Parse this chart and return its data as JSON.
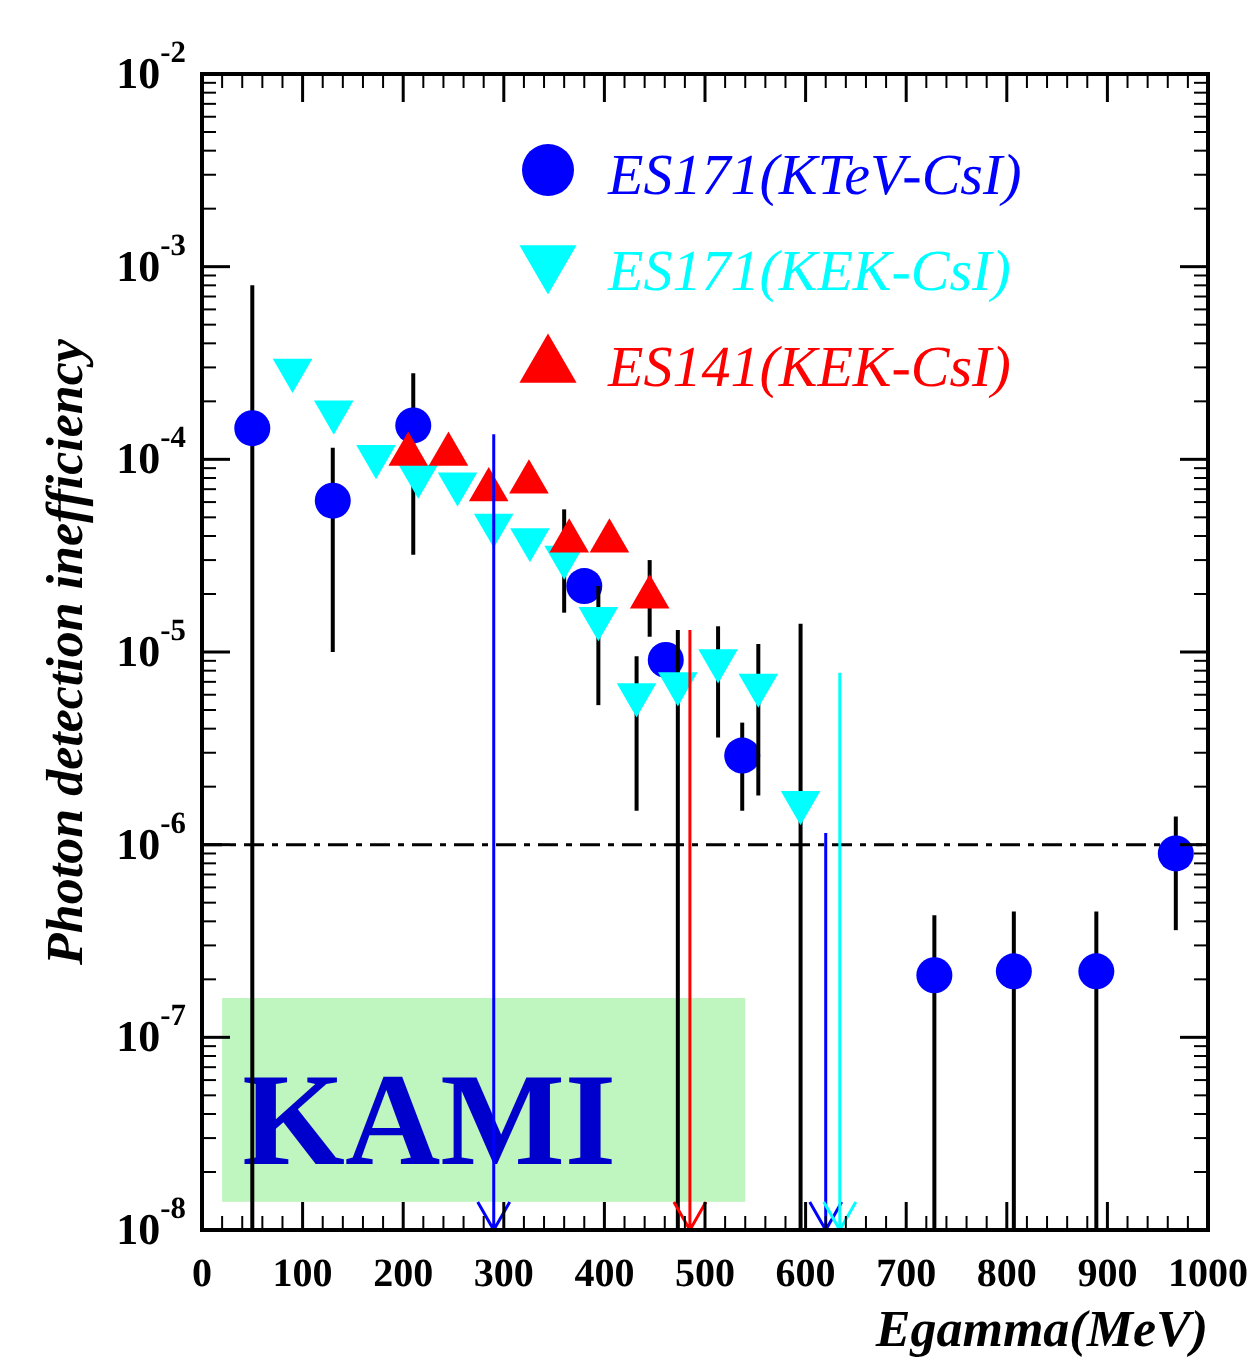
{
  "chart_data": {
    "type": "scatter",
    "xlabel": "Egamma(MeV)",
    "ylabel": "Photon detection inefficiency",
    "xlim": [
      0,
      1000
    ],
    "xticks": [
      0,
      100,
      200,
      300,
      400,
      500,
      600,
      700,
      800,
      900,
      1000
    ],
    "ylim": [
      1e-08,
      0.01
    ],
    "yticks": [
      {
        "value": 1e-08,
        "label": "10$^{-8}$"
      },
      {
        "value": 1e-07,
        "label": "10$^{-7}$"
      },
      {
        "value": 1e-06,
        "label": "10$^{-6}$"
      },
      {
        "value": 1e-05,
        "label": "10$^{-5}$"
      },
      {
        "value": 0.0001,
        "label": "10$^{-4}$"
      },
      {
        "value": 0.001,
        "label": "10$^{-3}$"
      },
      {
        "value": 0.01,
        "label": "10$^{-2}$"
      }
    ],
    "log": "y",
    "grid": false,
    "legend": "top right",
    "ref_lines": [
      {
        "axis": "y",
        "value": 1e-06,
        "color": "#000000",
        "line_style": "dashed"
      }
    ],
    "annotations": [
      "KAMI"
    ],
    "series": [
      {
        "name": "ES171(KTeV-CsI)",
        "color": "#0000ff",
        "marker": "circle",
        "x": [
          50,
          130,
          210,
          380,
          461,
          537,
          728,
          807,
          889,
          968
        ],
        "values": [
          0.000145,
          6.1e-05,
          0.00015,
          2.2e-05,
          9.1e-06,
          2.9e-06,
          2.1e-07,
          2.2e-07,
          2.2e-07,
          9e-07
        ],
        "errors": [
          [
            1e-08,
            0.0008
          ],
          [
            1e-05,
            0.000115
          ],
          [
            3.2e-05,
            0.00028
          ],
          null,
          null,
          [
            1.5e-06,
            4.3e-06
          ],
          [
            1e-08,
            4.3e-07
          ],
          [
            1e-08,
            4.5e-07
          ],
          [
            1e-08,
            4.5e-07
          ],
          [
            3.6e-07,
            1.4e-06
          ]
        ]
      },
      {
        "name": "ES171(KEK-CsI)",
        "color": "#00ffff",
        "marker": "triangle-down",
        "x": [
          90,
          131,
          173,
          215,
          254,
          290,
          326,
          360,
          394,
          432,
          473,
          513,
          553,
          595
        ],
        "values": [
          0.00028,
          0.00017,
          0.0001,
          7.9e-05,
          7.2e-05,
          4.4e-05,
          3.7e-05,
          3e-05,
          1.44e-05,
          5.8e-06,
          6.6e-06,
          8.7e-06,
          6.5e-06,
          1.6e-06
        ],
        "errors": [
          null,
          null,
          null,
          null,
          null,
          null,
          null,
          [
            1.6e-05,
            5.5e-05
          ],
          [
            5.3e-06,
            2.2e-05
          ],
          [
            1.5e-06,
            9.5e-06
          ],
          [
            1e-08,
            1.3e-05
          ],
          [
            3.6e-06,
            1.36e-05
          ],
          [
            1.8e-06,
            1.1e-05
          ],
          [
            1e-08,
            1.4e-05
          ]
        ]
      },
      {
        "name": "ES141(KEK-CsI)",
        "color": "#ff0000",
        "marker": "triangle",
        "x": [
          205,
          245,
          285,
          325,
          365,
          405,
          445
        ],
        "values": [
          0.00011,
          0.00011,
          7.2e-05,
          7.9e-05,
          3.9e-05,
          3.9e-05,
          2e-05
        ],
        "errors": [
          null,
          null,
          null,
          null,
          null,
          null,
          [
            1.2e-05,
            3e-05
          ]
        ]
      },
      {
        "type": "line",
        "color": "#0000ff",
        "marker": "none",
        "x": [
          290,
          290
        ],
        "values": [
          0.000135,
          1e-08
        ]
      },
      {
        "type": "line",
        "color": "#0000ff",
        "marker": "none",
        "x": [
          620,
          620
        ],
        "values": [
          1.15e-06,
          1e-08
        ]
      },
      {
        "type": "line",
        "color": "#ff0000",
        "marker": "none",
        "x": [
          485,
          485
        ],
        "values": [
          1.3e-05,
          1e-08
        ]
      },
      {
        "type": "line",
        "color": "#00ffff",
        "marker": "none",
        "x": [
          634,
          634
        ],
        "values": [
          7.8e-06,
          1e-08
        ]
      }
    ]
  }
}
